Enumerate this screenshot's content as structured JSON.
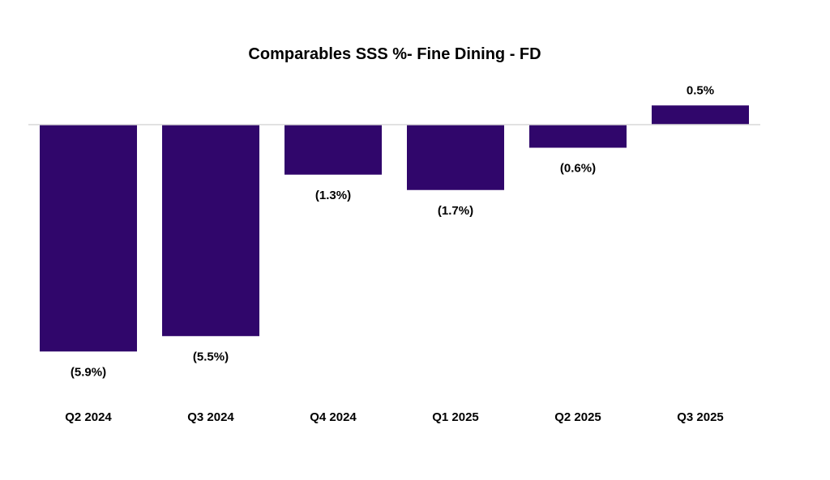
{
  "chart_data": {
    "type": "bar",
    "title": "Comparables SSS %- Fine Dining - FD",
    "categories": [
      "Q2 2024",
      "Q3 2024",
      "Q4 2024",
      "Q1 2025",
      "Q2 2025",
      "Q3 2025"
    ],
    "values": [
      -5.9,
      -5.5,
      -1.3,
      -1.7,
      -0.6,
      0.5
    ],
    "data_labels": [
      "(5.9%)",
      "(5.5%)",
      "(1.3%)",
      "(1.7%)",
      "(0.6%)",
      "0.5%"
    ],
    "xlabel": "",
    "ylabel": "",
    "ylim": [
      -6.5,
      1.5
    ],
    "grid": false,
    "legend": "none",
    "colors": {
      "bar": "#30066B",
      "zero_line": "#D9D9D9",
      "text": "#000000"
    }
  }
}
